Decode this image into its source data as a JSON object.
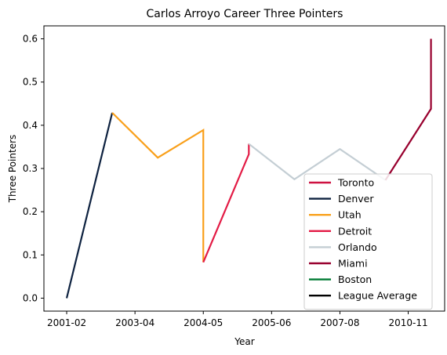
{
  "chart_data": {
    "type": "line",
    "title": "Carlos Arroyo Career Three Pointers",
    "xlabel": "Year",
    "ylabel": "Three Pointers",
    "x_tick_labels": [
      "2001-02",
      "2003-04",
      "2004-05",
      "2005-06",
      "2007-08",
      "2010-11"
    ],
    "x_tick_positions": [
      0,
      1.5,
      3,
      4.5,
      6,
      7.5
    ],
    "xlim": [
      -0.5,
      8.3
    ],
    "y_ticks": [
      0.0,
      0.1,
      0.2,
      0.3,
      0.4,
      0.5,
      0.6
    ],
    "ylim": [
      -0.03,
      0.63
    ],
    "legend_location": "lower right",
    "grid": false,
    "series": [
      {
        "name": "Toronto",
        "color": "#CE1141",
        "points": []
      },
      {
        "name": "Denver",
        "color": "#0E2240",
        "points": [
          [
            0,
            0.0
          ],
          [
            1,
            0.429
          ]
        ]
      },
      {
        "name": "Utah",
        "color": "#F9A01B",
        "points": [
          [
            1,
            0.429
          ],
          [
            2,
            0.325
          ],
          [
            3,
            0.389
          ],
          [
            3,
            0.083
          ]
        ]
      },
      {
        "name": "Detroit",
        "color": "#E31B45",
        "points": [
          [
            3,
            0.083
          ],
          [
            4,
            0.333
          ],
          [
            4,
            0.357
          ]
        ]
      },
      {
        "name": "Orlando",
        "color": "#C4CED4",
        "points": [
          [
            4,
            0.357
          ],
          [
            5,
            0.275
          ],
          [
            6,
            0.345
          ],
          [
            7,
            0.273
          ]
        ]
      },
      {
        "name": "Miami",
        "color": "#98002E",
        "points": [
          [
            7,
            0.273
          ],
          [
            8,
            0.438
          ],
          [
            8,
            0.6
          ]
        ]
      },
      {
        "name": "Boston",
        "color": "#007A33",
        "points": []
      },
      {
        "name": "League Average",
        "color": "#000000",
        "points": []
      }
    ]
  }
}
